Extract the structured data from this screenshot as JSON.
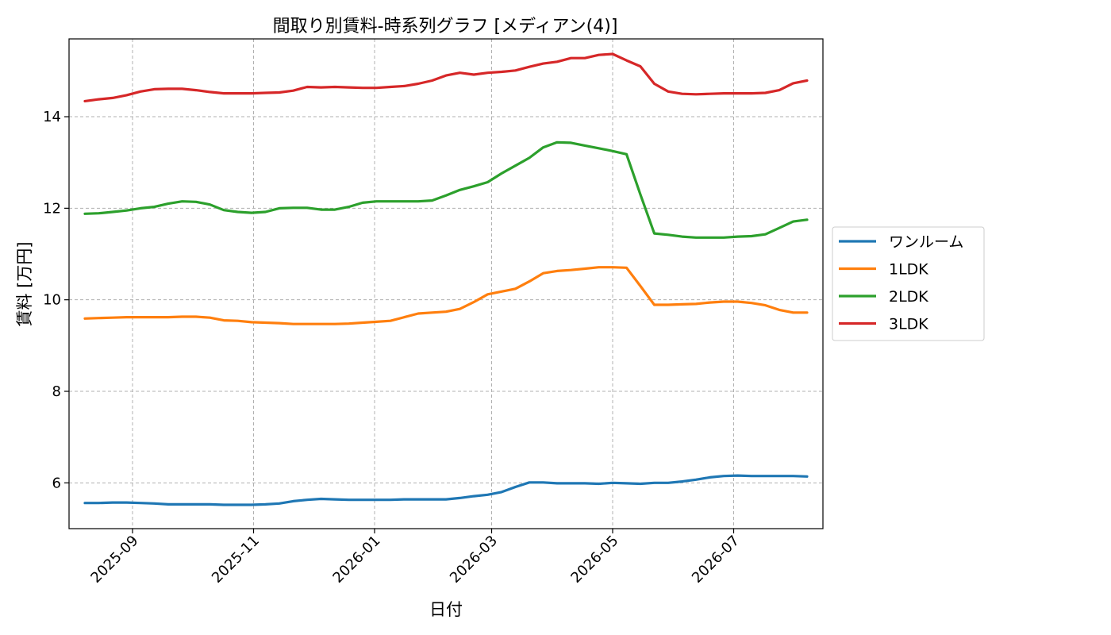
{
  "chart_data": {
    "type": "line",
    "title": "間取り別賃料-時系列グラフ [メディアン(4)]",
    "xlabel": "日付",
    "ylabel": "賃料 [万円]",
    "x": [
      "2025-08-08",
      "2025-08-15",
      "2025-08-22",
      "2025-08-29",
      "2025-09-05",
      "2025-09-12",
      "2025-09-19",
      "2025-09-26",
      "2025-10-03",
      "2025-10-10",
      "2025-10-17",
      "2025-10-24",
      "2025-10-31",
      "2025-11-07",
      "2025-11-14",
      "2025-11-21",
      "2025-11-28",
      "2025-12-05",
      "2025-12-12",
      "2025-12-19",
      "2025-12-26",
      "2026-01-02",
      "2026-01-09",
      "2026-01-16",
      "2026-01-23",
      "2026-01-30",
      "2026-02-06",
      "2026-02-13",
      "2026-02-20",
      "2026-02-27",
      "2026-03-06",
      "2026-03-13",
      "2026-03-20",
      "2026-03-27",
      "2026-04-03",
      "2026-04-10",
      "2026-04-17",
      "2026-04-24",
      "2026-05-01",
      "2026-05-08",
      "2026-05-15",
      "2026-05-22",
      "2026-05-29",
      "2026-06-05",
      "2026-06-12",
      "2026-06-19",
      "2026-06-26",
      "2026-07-03",
      "2026-07-10",
      "2026-07-17",
      "2026-07-24",
      "2026-07-31",
      "2026-08-07"
    ],
    "xticks": [
      "2025-09",
      "2025-11",
      "2026-01",
      "2026-03",
      "2026-05",
      "2026-07"
    ],
    "ylim": [
      5.0,
      15.7
    ],
    "yticks": [
      "6",
      "8",
      "10",
      "12",
      "14"
    ],
    "grid": true,
    "legend_position": "center right, outside plot",
    "series": [
      {
        "name": "ワンルーム",
        "color": "#1f77b4",
        "values": [
          5.56,
          5.56,
          5.57,
          5.57,
          5.56,
          5.55,
          5.53,
          5.53,
          5.53,
          5.53,
          5.52,
          5.52,
          5.52,
          5.53,
          5.55,
          5.6,
          5.63,
          5.65,
          5.64,
          5.63,
          5.63,
          5.63,
          5.63,
          5.64,
          5.64,
          5.64,
          5.64,
          5.67,
          5.71,
          5.74,
          5.8,
          5.91,
          6.01,
          6.01,
          5.99,
          5.99,
          5.99,
          5.98,
          6.0,
          5.99,
          5.98,
          6.0,
          6.0,
          6.03,
          6.07,
          6.12,
          6.15,
          6.16,
          6.15,
          6.15,
          6.15,
          6.15,
          6.14
        ]
      },
      {
        "name": "1LDK",
        "color": "#ff7f0e",
        "values": [
          9.59,
          9.6,
          9.61,
          9.62,
          9.62,
          9.62,
          9.62,
          9.63,
          9.63,
          9.61,
          9.55,
          9.54,
          9.51,
          9.5,
          9.49,
          9.47,
          9.47,
          9.47,
          9.47,
          9.48,
          9.5,
          9.52,
          9.54,
          9.62,
          9.7,
          9.72,
          9.74,
          9.8,
          9.95,
          10.12,
          10.18,
          10.24,
          10.4,
          10.58,
          10.63,
          10.65,
          10.68,
          10.71,
          10.71,
          10.7,
          10.3,
          9.89,
          9.89,
          9.9,
          9.91,
          9.94,
          9.96,
          9.96,
          9.93,
          9.88,
          9.78,
          9.72,
          9.72
        ]
      },
      {
        "name": "2LDK",
        "color": "#2ca02c",
        "values": [
          11.88,
          11.89,
          11.92,
          11.95,
          12.0,
          12.03,
          12.1,
          12.15,
          12.14,
          12.08,
          11.96,
          11.92,
          11.9,
          11.92,
          12.0,
          12.01,
          12.01,
          11.97,
          11.97,
          12.03,
          12.12,
          12.15,
          12.15,
          12.15,
          12.15,
          12.17,
          12.28,
          12.4,
          12.48,
          12.57,
          12.76,
          12.93,
          13.1,
          13.33,
          13.44,
          13.43,
          13.37,
          13.31,
          13.25,
          13.18,
          12.3,
          11.45,
          11.42,
          11.38,
          11.36,
          11.36,
          11.36,
          11.38,
          11.39,
          11.43,
          11.57,
          11.71,
          11.75
        ]
      },
      {
        "name": "3LDK",
        "color": "#d62728",
        "values": [
          14.34,
          14.38,
          14.41,
          14.47,
          14.55,
          14.6,
          14.61,
          14.61,
          14.58,
          14.54,
          14.51,
          14.51,
          14.51,
          14.52,
          14.53,
          14.57,
          14.65,
          14.64,
          14.65,
          14.64,
          14.63,
          14.63,
          14.65,
          14.67,
          14.72,
          14.79,
          14.9,
          14.96,
          14.92,
          14.96,
          14.98,
          15.01,
          15.09,
          15.16,
          15.2,
          15.28,
          15.28,
          15.35,
          15.37,
          15.23,
          15.1,
          14.72,
          14.55,
          14.5,
          14.49,
          14.5,
          14.51,
          14.51,
          14.51,
          14.52,
          14.58,
          14.73,
          14.79
        ]
      }
    ]
  }
}
